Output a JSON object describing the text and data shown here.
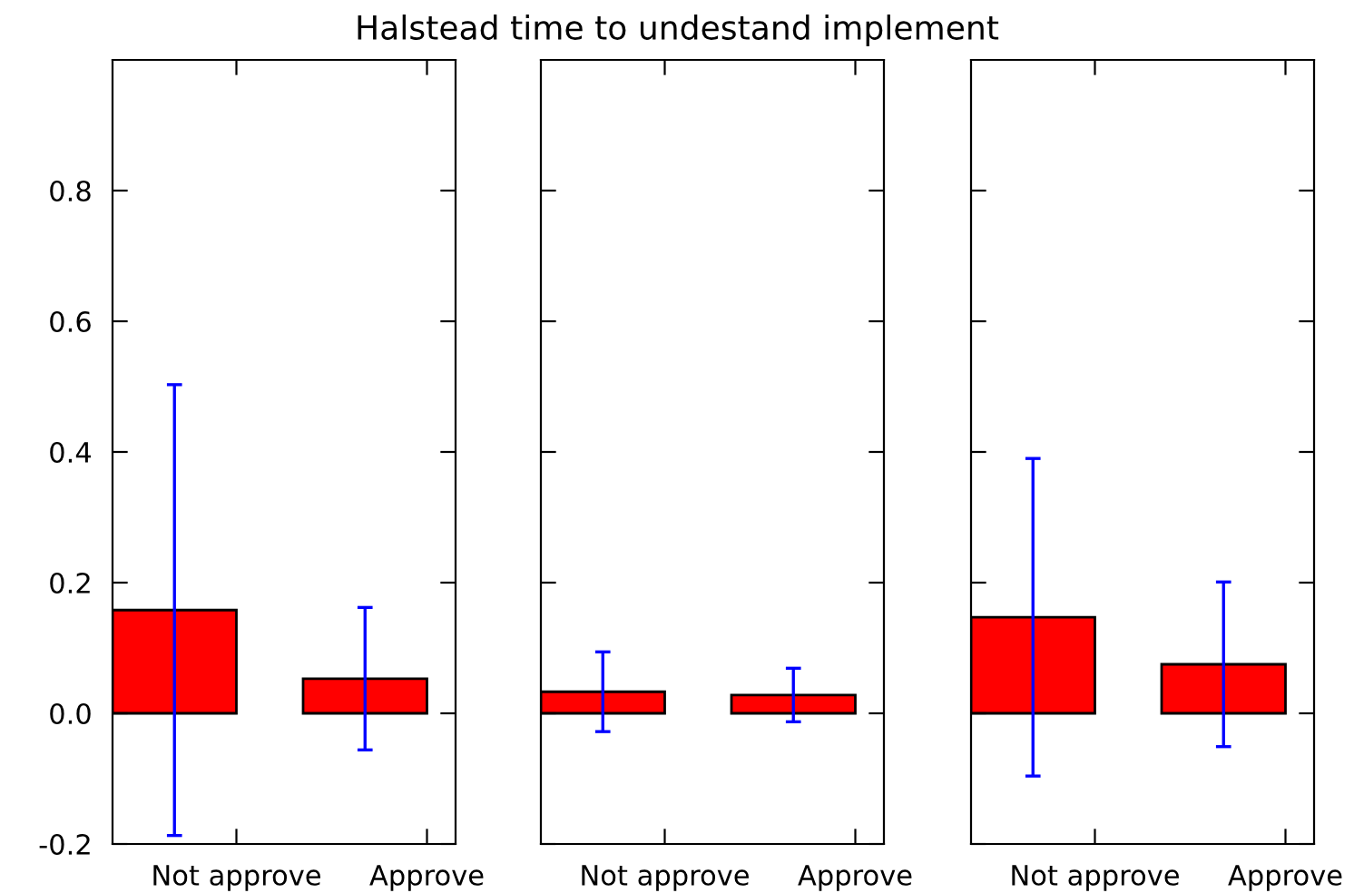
{
  "chart_data": [
    {
      "type": "bar",
      "title": "Halstead time to undestand implement",
      "categories": [
        "Not approve",
        "Approve"
      ],
      "values": [
        0.158,
        0.053
      ],
      "errors": [
        0.345,
        0.109
      ],
      "color": "#ff0000",
      "ylim": [
        -0.2,
        1.0
      ],
      "yticks": [
        -0.2,
        {
          "value": 0,
          "label": "0.0"
        },
        0.2,
        0.4,
        0.6,
        0.8
      ],
      "grid": false
    },
    {
      "type": "bar",
      "categories": [
        "Not approve",
        "Approve"
      ],
      "values": [
        0.033,
        0.028
      ],
      "errors": [
        0.061,
        0.041
      ],
      "color": "#ff0000",
      "ylim": [
        -0.2,
        1.0
      ],
      "yticks": [
        -0.2,
        0,
        0.2,
        0.4,
        0.6,
        0.8
      ],
      "tick_labels": "x",
      "grid": false
    },
    {
      "type": "bar",
      "categories": [
        "Not approve",
        "Approve"
      ],
      "values": [
        0.147,
        0.075
      ],
      "errors": [
        0.243,
        0.126
      ],
      "color": "#ff0000",
      "ylim": [
        -0.2,
        1.0
      ],
      "yticks": [
        -0.2,
        0,
        0.2,
        0.4,
        0.6,
        0.8
      ],
      "tick_labels": "x",
      "grid": false
    }
  ]
}
